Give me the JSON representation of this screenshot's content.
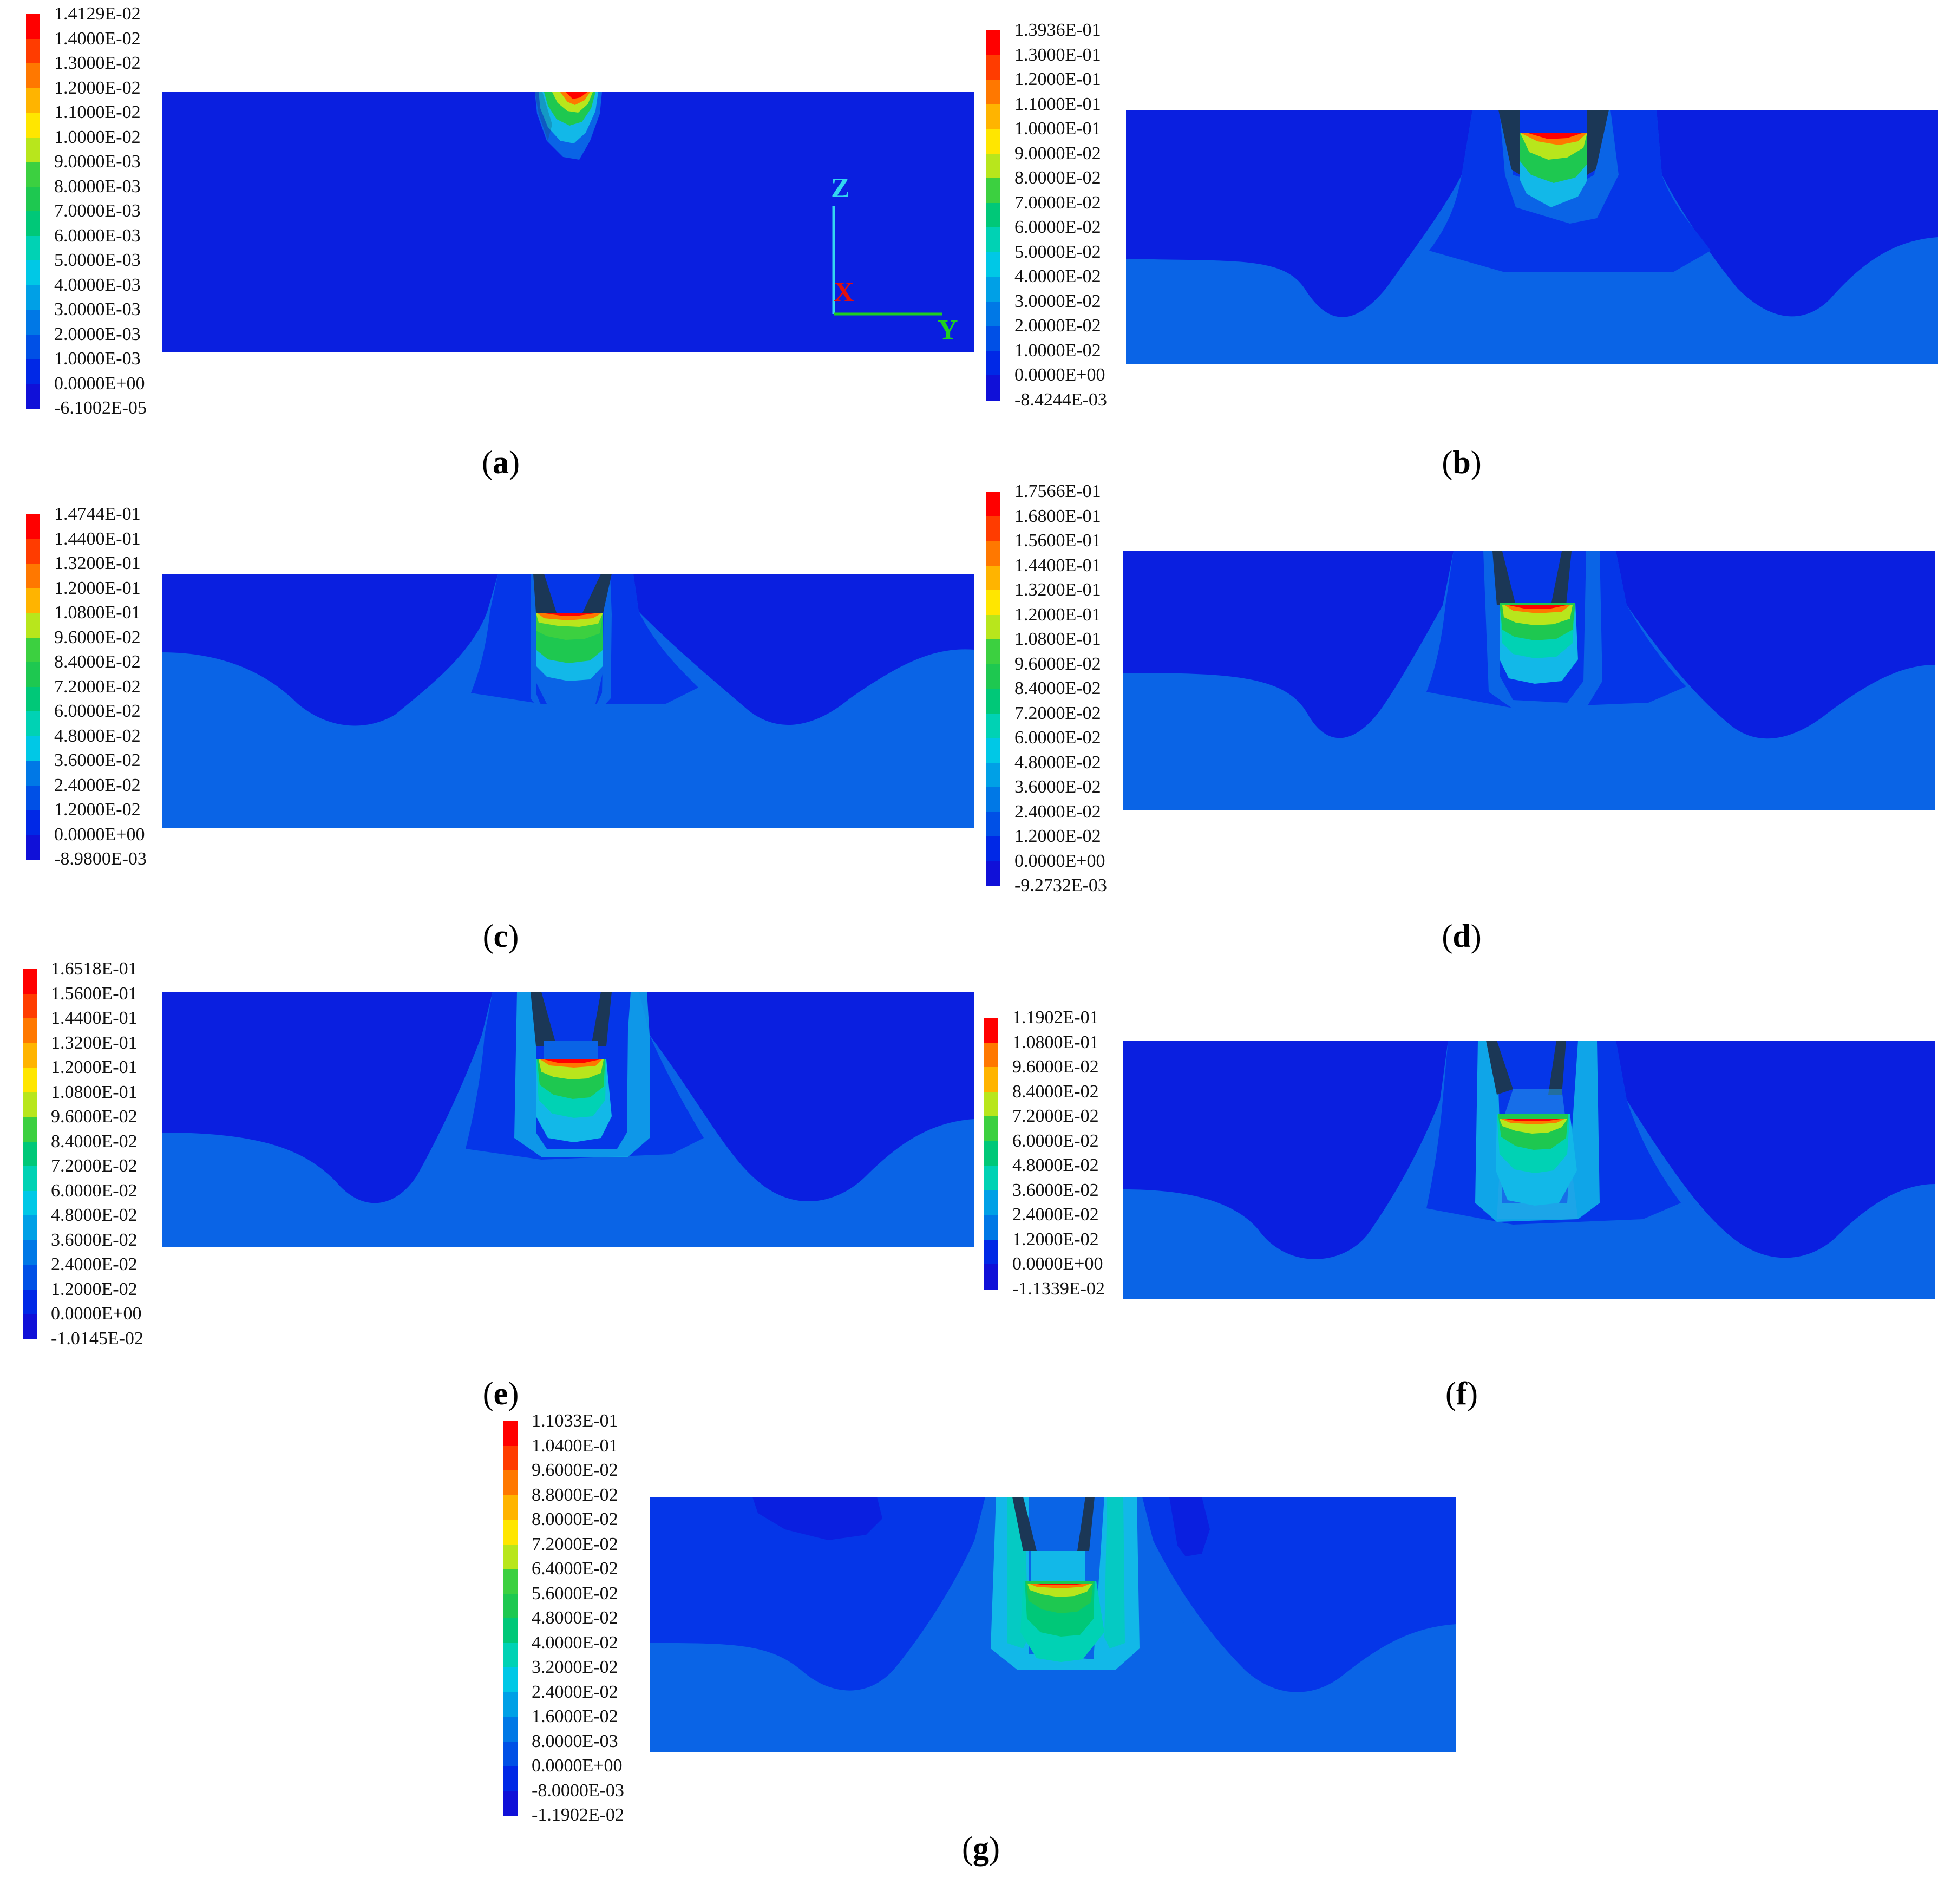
{
  "legend_colors": [
    "#ff0000",
    "#ff3c00",
    "#ff7800",
    "#ffb400",
    "#ffe600",
    "#b8e61c",
    "#3cd040",
    "#1ec850",
    "#00c878",
    "#00d2b4",
    "#00c8e6",
    "#00a0e6",
    "#0078e6",
    "#0050e6",
    "#0028e6",
    "#1010d8"
  ],
  "colors": {
    "deep": "#0a1fe0",
    "mid": "#0536e8",
    "light": "#0a64e6",
    "cyan": "#12b8e8",
    "pale": "#2aa6e8",
    "groove_dark": "#1b3756",
    "axis_z": "#33d6f0",
    "axis_x": "#e01010",
    "axis_y": "#1fcf1f"
  },
  "panels": [
    {
      "id": "a",
      "caption": "a",
      "legend": [
        "1.4129E-02",
        "1.4000E-02",
        "1.3000E-02",
        "1.2000E-02",
        "1.1000E-02",
        "1.0000E-02",
        "9.0000E-03",
        "8.0000E-03",
        "7.0000E-03",
        "6.0000E-03",
        "5.0000E-03",
        "4.0000E-03",
        "3.0000E-03",
        "2.0000E-03",
        "1.0000E-03",
        "0.0000E+00",
        "-6.1002E-05"
      ],
      "axes": {
        "z": "Z",
        "x": "X",
        "y": "Y"
      }
    },
    {
      "id": "b",
      "caption": "b",
      "legend": [
        "1.3936E-01",
        "1.3000E-01",
        "1.2000E-01",
        "1.1000E-01",
        "1.0000E-01",
        "9.0000E-02",
        "8.0000E-02",
        "7.0000E-02",
        "6.0000E-02",
        "5.0000E-02",
        "4.0000E-02",
        "3.0000E-02",
        "2.0000E-02",
        "1.0000E-02",
        "0.0000E+00",
        "-8.4244E-03"
      ]
    },
    {
      "id": "c",
      "caption": "c",
      "legend": [
        "1.4744E-01",
        "1.4400E-01",
        "1.3200E-01",
        "1.2000E-01",
        "1.0800E-01",
        "9.6000E-02",
        "8.4000E-02",
        "7.2000E-02",
        "6.0000E-02",
        "4.8000E-02",
        "3.6000E-02",
        "2.4000E-02",
        "1.2000E-02",
        "0.0000E+00",
        "-8.9800E-03"
      ]
    },
    {
      "id": "d",
      "caption": "d",
      "legend": [
        "1.7566E-01",
        "1.6800E-01",
        "1.5600E-01",
        "1.4400E-01",
        "1.3200E-01",
        "1.2000E-01",
        "1.0800E-01",
        "9.6000E-02",
        "8.4000E-02",
        "7.2000E-02",
        "6.0000E-02",
        "4.8000E-02",
        "3.6000E-02",
        "2.4000E-02",
        "1.2000E-02",
        "0.0000E+00",
        "-9.2732E-03"
      ]
    },
    {
      "id": "e",
      "caption": "e",
      "legend": [
        "1.6518E-01",
        "1.5600E-01",
        "1.4400E-01",
        "1.3200E-01",
        "1.2000E-01",
        "1.0800E-01",
        "9.6000E-02",
        "8.4000E-02",
        "7.2000E-02",
        "6.0000E-02",
        "4.8000E-02",
        "3.6000E-02",
        "2.4000E-02",
        "1.2000E-02",
        "0.0000E+00",
        "-1.0145E-02"
      ]
    },
    {
      "id": "f",
      "caption": "f",
      "legend": [
        "1.1902E-01",
        "1.0800E-01",
        "9.6000E-02",
        "8.4000E-02",
        "7.2000E-02",
        "6.0000E-02",
        "4.8000E-02",
        "3.6000E-02",
        "2.4000E-02",
        "1.2000E-02",
        "0.0000E+00",
        "-1.1339E-02"
      ]
    },
    {
      "id": "g",
      "caption": "g",
      "legend": [
        "1.1033E-01",
        "1.0400E-01",
        "9.6000E-02",
        "8.8000E-02",
        "8.0000E-02",
        "7.2000E-02",
        "6.4000E-02",
        "5.6000E-02",
        "4.8000E-02",
        "4.0000E-02",
        "3.2000E-02",
        "2.4000E-02",
        "1.6000E-02",
        "8.0000E-03",
        "0.0000E+00",
        "-8.0000E-03",
        "-1.1902E-02"
      ]
    }
  ]
}
